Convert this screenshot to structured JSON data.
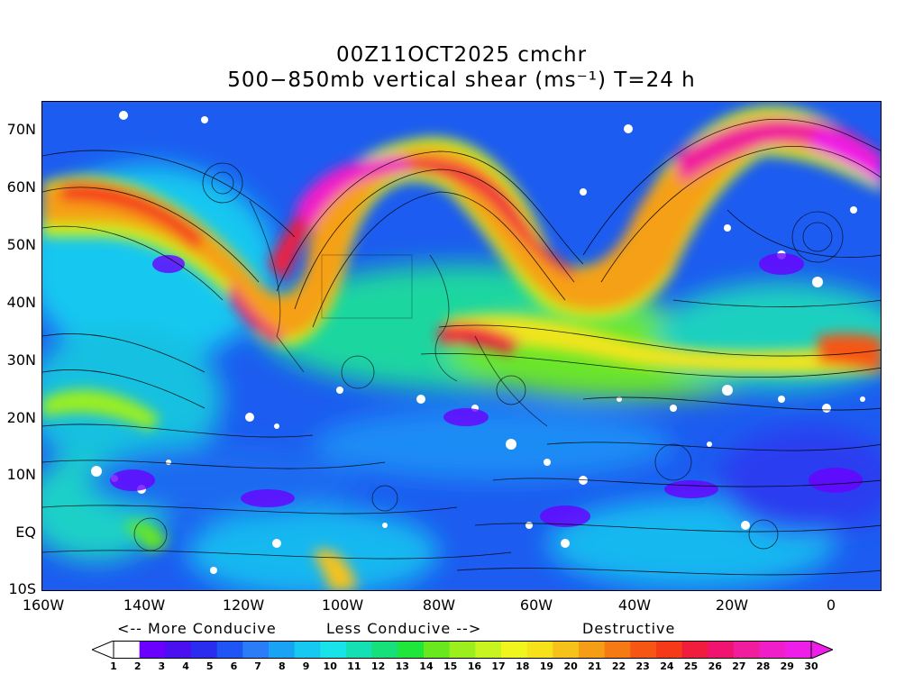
{
  "title_line1": "00Z11OCT2025 cmchr",
  "title_line2": "500−850mb vertical shear (ms⁻¹) T=24 h",
  "lat_labels": [
    "70N",
    "60N",
    "50N",
    "40N",
    "30N",
    "20N",
    "10N",
    "EQ",
    "10S"
  ],
  "lon_labels": [
    "160W",
    "140W",
    "120W",
    "100W",
    "80W",
    "60W",
    "40W",
    "20W",
    "0"
  ],
  "legend": {
    "more": "<-- More Conducive",
    "less": "Less Conducive -->",
    "destructive": "Destructive"
  },
  "colorbar": {
    "labels": [
      "1",
      "2",
      "3",
      "4",
      "5",
      "6",
      "7",
      "8",
      "9",
      "10",
      "11",
      "12",
      "13",
      "14",
      "15",
      "16",
      "17",
      "18",
      "19",
      "20",
      "21",
      "22",
      "23",
      "24",
      "25",
      "26",
      "27",
      "28",
      "29",
      "30"
    ],
    "colors": [
      "#ffffff",
      "#6a00ff",
      "#4b10f0",
      "#2a2cf0",
      "#1f55f5",
      "#2a7df7",
      "#19a3f5",
      "#17c8f0",
      "#17e3e8",
      "#14e0b4",
      "#17e07a",
      "#1fe63a",
      "#69e81e",
      "#9cef1c",
      "#c8f51f",
      "#f0f51e",
      "#f5e21a",
      "#f5c21a",
      "#f59e15",
      "#f57a14",
      "#f55614",
      "#f53a1a",
      "#f01e3c",
      "#f01470",
      "#f01e9c",
      "#f01ec8",
      "#ee1ee8"
    ]
  }
}
